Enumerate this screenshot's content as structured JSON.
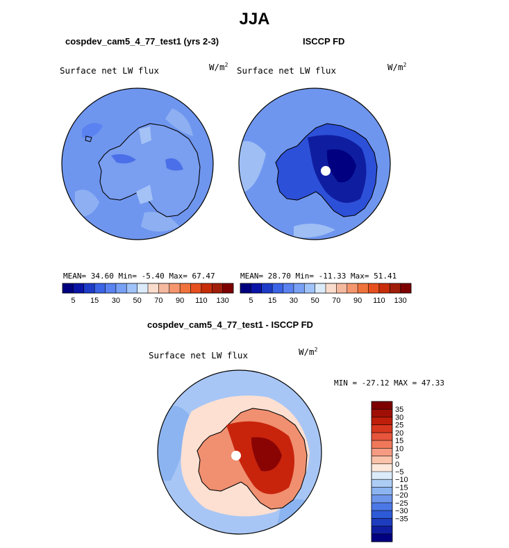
{
  "title": "JJA",
  "panels": [
    {
      "name": "model",
      "subtitle": "cospdev_cam5_4_77_test1 (yrs 2-3)",
      "variable": "Surface net LW flux",
      "units_base": "W/m",
      "units_exp": "2",
      "mean_label": "MEAN=",
      "mean": "34.60",
      "min_label": "Min=",
      "min": "-5.40",
      "max_label": "Max=",
      "max": "67.47"
    },
    {
      "name": "obs",
      "subtitle": "ISCCP FD",
      "variable": "Surface net LW flux",
      "units_base": "W/m",
      "units_exp": "2",
      "mean_label": "MEAN=",
      "mean": "28.70",
      "min_label": "Min=",
      "min": "-11.33",
      "max_label": "Max=",
      "max": "51.41"
    }
  ],
  "diff": {
    "subtitle": "cospdev_cam5_4_77_test1 - ISCCP FD",
    "variable": "Surface net LW flux",
    "units_base": "W/m",
    "units_exp": "2",
    "min_label": "MIN =",
    "min": "-27.12",
    "max_label": "MAX =",
    "max": "47.33"
  },
  "chart_data": [
    {
      "type": "heatmap",
      "projection": "south-polar-stereographic",
      "title": "cospdev_cam5_4_77_test1 (yrs 2-3)",
      "variable": "Surface net LW flux",
      "units": "W/m^2",
      "stats": {
        "mean": 34.6,
        "min": -5.4,
        "max": 67.47
      },
      "colorbar": {
        "tick_labels": [
          "5",
          "15",
          "30",
          "50",
          "70",
          "90",
          "110",
          "130"
        ],
        "colors": [
          "#00007f",
          "#0a14a6",
          "#1e3cc8",
          "#3c64e6",
          "#5a82f0",
          "#78a0f5",
          "#a0c3fa",
          "#dcebfa",
          "#fadccd",
          "#f5b9a0",
          "#f5966e",
          "#f0733c",
          "#e6501e",
          "#c82d0a",
          "#a01e0a",
          "#7d0000"
        ]
      }
    },
    {
      "type": "heatmap",
      "projection": "south-polar-stereographic",
      "title": "ISCCP FD",
      "variable": "Surface net LW flux",
      "units": "W/m^2",
      "stats": {
        "mean": 28.7,
        "min": -11.33,
        "max": 51.41
      },
      "colorbar": {
        "tick_labels": [
          "5",
          "15",
          "30",
          "50",
          "70",
          "90",
          "110",
          "130"
        ],
        "colors": [
          "#00007f",
          "#0a14a6",
          "#1e3cc8",
          "#3c64e6",
          "#5a82f0",
          "#78a0f5",
          "#a0c3fa",
          "#dcebfa",
          "#fadccd",
          "#f5b9a0",
          "#f5966e",
          "#f0733c",
          "#e6501e",
          "#c82d0a",
          "#a01e0a",
          "#7d0000"
        ]
      }
    },
    {
      "type": "heatmap",
      "projection": "south-polar-stereographic",
      "title": "cospdev_cam5_4_77_test1 - ISCCP FD",
      "variable": "Surface net LW flux",
      "units": "W/m^2",
      "stats": {
        "min": -27.12,
        "max": 47.33
      },
      "colorbar": {
        "tick_labels": [
          "35",
          "30",
          "25",
          "20",
          "15",
          "10",
          "5",
          "0",
          "−5",
          "−10",
          "−15",
          "−20",
          "−25",
          "−30",
          "−35"
        ],
        "colors": [
          "#7d0000",
          "#a00f05",
          "#be1e0a",
          "#d7371e",
          "#e6553c",
          "#f0785a",
          "#f59b82",
          "#fac3aa",
          "#fde8dc",
          "#dcebfa",
          "#aecdf5",
          "#8cb4f0",
          "#6e96eb",
          "#4b78e6",
          "#2d5ad7",
          "#1e3cbe",
          "#0f1ea0",
          "#000080"
        ]
      }
    }
  ]
}
